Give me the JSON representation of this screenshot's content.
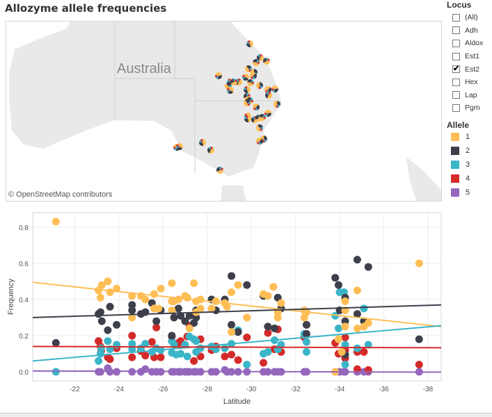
{
  "title": "Allozyme allele frequencies",
  "map": {
    "label": "Australia",
    "credit": "© OpenStreetMap contributors"
  },
  "locus_filter": {
    "title": "Locus",
    "items": [
      {
        "label": "(All)",
        "checked": false
      },
      {
        "label": "Adh",
        "checked": false
      },
      {
        "label": "Aldox",
        "checked": false
      },
      {
        "label": "Est1",
        "checked": false
      },
      {
        "label": "Est2",
        "checked": true
      },
      {
        "label": "Hex",
        "checked": false
      },
      {
        "label": "Lap",
        "checked": false
      },
      {
        "label": "Pgm",
        "checked": false
      }
    ]
  },
  "allele_legend": {
    "title": "Allele",
    "items": [
      {
        "label": "1",
        "color": "#ffbe55"
      },
      {
        "label": "2",
        "color": "#3d3f4b"
      },
      {
        "label": "3",
        "color": "#3bb5c8"
      },
      {
        "label": "4",
        "color": "#d42a2a"
      },
      {
        "label": "5",
        "color": "#9467bd"
      }
    ]
  },
  "chart_data": {
    "type": "scatter",
    "xlabel": "Latitude",
    "ylabel": "Frequency",
    "xlim": [
      -20.1,
      -38.6
    ],
    "ylim": [
      -0.05,
      0.88
    ],
    "xticks": [
      "-22",
      "-24",
      "-26",
      "-28",
      "-30",
      "-32",
      "-34",
      "-36",
      "-38"
    ],
    "yticks": [
      "0.0",
      "0.2",
      "0.4",
      "0.6",
      "0.8"
    ],
    "grid": true,
    "series": [
      {
        "name": "1",
        "color": "#ffbe55",
        "trend": [
          0.495,
          0.25
        ],
        "points": [
          [
            -21.15,
            0.83
          ],
          [
            -23.08,
            0.45
          ],
          [
            -23.23,
            0.48
          ],
          [
            -23.17,
            0.41
          ],
          [
            -23.5,
            0.5
          ],
          [
            -23.6,
            0.44
          ],
          [
            -23.9,
            0.46
          ],
          [
            -24.6,
            0.42
          ],
          [
            -24.6,
            0.3
          ],
          [
            -25.0,
            0.42
          ],
          [
            -25.2,
            0.4
          ],
          [
            -25.6,
            0.43
          ],
          [
            -25.9,
            0.46
          ],
          [
            -25.6,
            0.35
          ],
          [
            -25.8,
            0.35
          ],
          [
            -26.4,
            0.49
          ],
          [
            -26.4,
            0.39
          ],
          [
            -26.5,
            0.39
          ],
          [
            -26.4,
            0.34
          ],
          [
            -26.7,
            0.4
          ],
          [
            -27.0,
            0.42
          ],
          [
            -27.1,
            0.41
          ],
          [
            -27.2,
            0.24
          ],
          [
            -27.4,
            0.49
          ],
          [
            -27.5,
            0.39
          ],
          [
            -27.7,
            0.4
          ],
          [
            -27.5,
            0.33
          ],
          [
            -27.7,
            0.35
          ],
          [
            -28.2,
            0.35
          ],
          [
            -28.4,
            0.39
          ],
          [
            -28.8,
            0.38
          ],
          [
            -28.9,
            0.36
          ],
          [
            -29.1,
            0.44
          ],
          [
            -29.4,
            0.48
          ],
          [
            -29.1,
            0.22
          ],
          [
            -29.8,
            0.3
          ],
          [
            -30.55,
            0.43
          ],
          [
            -30.75,
            0.42
          ],
          [
            -31.0,
            0.47
          ],
          [
            -31.2,
            0.33
          ],
          [
            -31.2,
            0.3
          ],
          [
            -31.35,
            0.38
          ],
          [
            -32.4,
            0.34
          ],
          [
            -32.4,
            0.3
          ],
          [
            -32.5,
            0.33
          ],
          [
            -33.8,
            0.0
          ],
          [
            -33.95,
            0.18
          ],
          [
            -34.1,
            0.11
          ],
          [
            -34.25,
            0.39
          ],
          [
            -34.25,
            0.34
          ],
          [
            -34.25,
            0.25
          ],
          [
            -34.8,
            0.45
          ],
          [
            -34.8,
            0.24
          ],
          [
            -35.1,
            0.25
          ],
          [
            -35.3,
            0.27
          ],
          [
            -37.6,
            0.6
          ]
        ]
      },
      {
        "name": "2",
        "color": "#3d3f4b",
        "trend": [
          0.3,
          0.37
        ],
        "points": [
          [
            -21.15,
            0.16
          ],
          [
            -23.08,
            0.32
          ],
          [
            -23.17,
            0.33
          ],
          [
            -23.23,
            0.28
          ],
          [
            -23.5,
            0.23
          ],
          [
            -23.6,
            0.36
          ],
          [
            -23.9,
            0.26
          ],
          [
            -24.6,
            0.37
          ],
          [
            -24.6,
            0.34
          ],
          [
            -25.0,
            0.32
          ],
          [
            -25.2,
            0.33
          ],
          [
            -25.5,
            0.38
          ],
          [
            -25.7,
            0.28
          ],
          [
            -25.9,
            0.34
          ],
          [
            -26.4,
            0.2
          ],
          [
            -26.5,
            0.3
          ],
          [
            -26.7,
            0.35
          ],
          [
            -26.8,
            0.31
          ],
          [
            -27.0,
            0.28
          ],
          [
            -27.2,
            0.31
          ],
          [
            -27.4,
            0.27
          ],
          [
            -27.5,
            0.3
          ],
          [
            -27.5,
            0.34
          ],
          [
            -28.2,
            0.4
          ],
          [
            -28.4,
            0.34
          ],
          [
            -28.8,
            0.4
          ],
          [
            -29.1,
            0.53
          ],
          [
            -29.1,
            0.26
          ],
          [
            -29.4,
            0.22
          ],
          [
            -29.8,
            0.48
          ],
          [
            -30.55,
            0.42
          ],
          [
            -30.75,
            0.25
          ],
          [
            -31.05,
            0.24
          ],
          [
            -31.2,
            0.41
          ],
          [
            -31.35,
            0.35
          ],
          [
            -32.5,
            0.21
          ],
          [
            -32.5,
            0.26
          ],
          [
            -33.8,
            0.52
          ],
          [
            -33.95,
            0.48
          ],
          [
            -34.0,
            0.34
          ],
          [
            -34.25,
            0.41
          ],
          [
            -34.25,
            0.28
          ],
          [
            -34.25,
            0.095
          ],
          [
            -34.8,
            0.62
          ],
          [
            -34.8,
            0.32
          ],
          [
            -35.1,
            0.28
          ],
          [
            -35.3,
            0.58
          ],
          [
            -37.6,
            0.18
          ]
        ]
      },
      {
        "name": "3",
        "color": "#3bb5c8",
        "trend": [
          0.06,
          0.255
        ],
        "points": [
          [
            -21.15,
            0.0
          ],
          [
            -23.08,
            0.06
          ],
          [
            -23.17,
            0.1
          ],
          [
            -23.2,
            0.13
          ],
          [
            -23.5,
            0.17
          ],
          [
            -23.6,
            0.125
          ],
          [
            -23.9,
            0.15
          ],
          [
            -24.6,
            0.155
          ],
          [
            -24.6,
            0.125
          ],
          [
            -25.0,
            0.13
          ],
          [
            -25.2,
            0.155
          ],
          [
            -25.5,
            0.11
          ],
          [
            -25.7,
            0.13
          ],
          [
            -25.9,
            0.12
          ],
          [
            -26.4,
            0.17
          ],
          [
            -26.4,
            0.105
          ],
          [
            -26.5,
            0.15
          ],
          [
            -26.6,
            0.095
          ],
          [
            -26.8,
            0.1
          ],
          [
            -27.0,
            0.15
          ],
          [
            -27.1,
            0.085
          ],
          [
            -27.2,
            0.195
          ],
          [
            -27.4,
            0.18
          ],
          [
            -27.5,
            0.17
          ],
          [
            -27.5,
            0.11
          ],
          [
            -27.7,
            0.13
          ],
          [
            -28.2,
            0.14
          ],
          [
            -28.4,
            0.125
          ],
          [
            -28.8,
            0.13
          ],
          [
            -29.1,
            0.155
          ],
          [
            -29.4,
            0.23
          ],
          [
            -29.8,
            0.04
          ],
          [
            -30.55,
            0.1
          ],
          [
            -30.75,
            0.11
          ],
          [
            -31.05,
            0.175
          ],
          [
            -31.2,
            0.125
          ],
          [
            -31.35,
            0.15
          ],
          [
            -32.4,
            0.21
          ],
          [
            -32.5,
            0.11
          ],
          [
            -32.5,
            0.165
          ],
          [
            -33.8,
            0.31
          ],
          [
            -33.95,
            0.24
          ],
          [
            -34.0,
            0.44
          ],
          [
            -34.2,
            0.44
          ],
          [
            -34.25,
            0.15
          ],
          [
            -34.25,
            0.04
          ],
          [
            -34.8,
            0.13
          ],
          [
            -35.1,
            0.35
          ],
          [
            -35.3,
            0.15
          ]
        ]
      },
      {
        "name": "4",
        "color": "#d42a2a",
        "trend": [
          0.14,
          0.133
        ],
        "points": [
          [
            -23.08,
            0.17
          ],
          [
            -23.17,
            0.14
          ],
          [
            -23.2,
            0.115
          ],
          [
            -23.5,
            0.08
          ],
          [
            -23.6,
            0.07
          ],
          [
            -23.9,
            0.13
          ],
          [
            -24.6,
            0.2
          ],
          [
            -24.6,
            0.08
          ],
          [
            -25.0,
            0.115
          ],
          [
            -25.2,
            0.09
          ],
          [
            -25.5,
            0.165
          ],
          [
            -25.6,
            0.08
          ],
          [
            -25.7,
            0.245
          ],
          [
            -25.9,
            0.08
          ],
          [
            -26.4,
            0.195
          ],
          [
            -26.7,
            0.16
          ],
          [
            -26.8,
            0.17
          ],
          [
            -27.1,
            0.195
          ],
          [
            -27.2,
            0.255
          ],
          [
            -27.4,
            0.06
          ],
          [
            -27.7,
            0.18
          ],
          [
            -27.7,
            0.085
          ],
          [
            -28.2,
            0.12
          ],
          [
            -28.4,
            0.14
          ],
          [
            -28.8,
            0.085
          ],
          [
            -29.1,
            0.095
          ],
          [
            -29.4,
            0.065
          ],
          [
            -29.8,
            0.19
          ],
          [
            -30.55,
            0.05
          ],
          [
            -30.75,
            0.215
          ],
          [
            -31.05,
            0.125
          ],
          [
            -31.2,
            0.235
          ],
          [
            -31.35,
            0.11
          ],
          [
            -32.4,
            0.19
          ],
          [
            -32.5,
            0.26
          ],
          [
            -33.8,
            0.16
          ],
          [
            -33.95,
            0.1
          ],
          [
            -34.25,
            0.19
          ],
          [
            -34.25,
            0.12
          ],
          [
            -34.25,
            0.075
          ],
          [
            -34.8,
            0.11
          ],
          [
            -34.8,
            0.015
          ],
          [
            -35.1,
            0.11
          ],
          [
            -35.3,
            0.01
          ],
          [
            -37.6,
            0.04
          ]
        ]
      },
      {
        "name": "5",
        "color": "#9467bd",
        "trend": [
          0.005,
          -0.002
        ],
        "points": [
          [
            -23.08,
            0.0
          ],
          [
            -23.17,
            0.0
          ],
          [
            -23.5,
            0.02
          ],
          [
            -23.6,
            0.0
          ],
          [
            -23.9,
            0.0
          ],
          [
            -24.6,
            0.0
          ],
          [
            -25.0,
            0.0
          ],
          [
            -25.2,
            0.015
          ],
          [
            -25.5,
            0.0
          ],
          [
            -25.7,
            0.0
          ],
          [
            -25.9,
            0.0
          ],
          [
            -26.4,
            0.0
          ],
          [
            -26.5,
            0.0
          ],
          [
            -26.7,
            0.0
          ],
          [
            -26.8,
            0.0
          ],
          [
            -27.0,
            0.0
          ],
          [
            -27.1,
            0.0
          ],
          [
            -27.2,
            0.0
          ],
          [
            -27.4,
            0.0
          ],
          [
            -27.5,
            0.0
          ],
          [
            -27.7,
            0.0
          ],
          [
            -28.2,
            0.0
          ],
          [
            -28.4,
            0.0
          ],
          [
            -28.8,
            0.01
          ],
          [
            -28.9,
            0.0
          ],
          [
            -29.1,
            0.0
          ],
          [
            -29.4,
            0.0
          ],
          [
            -29.8,
            0.0
          ],
          [
            -30.55,
            0.0
          ],
          [
            -30.75,
            0.0
          ],
          [
            -31.05,
            0.0
          ],
          [
            -31.2,
            0.0
          ],
          [
            -31.35,
            0.0
          ],
          [
            -32.4,
            0.0
          ],
          [
            -32.5,
            0.0
          ],
          [
            -34.0,
            0.0
          ],
          [
            -34.2,
            0.0
          ],
          [
            -34.25,
            0.0
          ],
          [
            -34.8,
            0.0
          ],
          [
            -35.1,
            0.0
          ],
          [
            -35.3,
            0.0
          ],
          [
            -37.6,
            0.0
          ]
        ]
      }
    ]
  }
}
